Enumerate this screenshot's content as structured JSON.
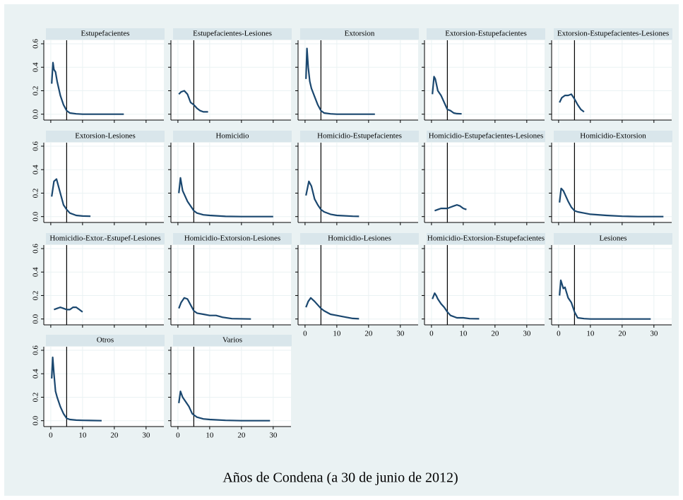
{
  "chart_data": {
    "type": "line",
    "xlabel": "Años de Condena (a 30 de junio de 2012)",
    "xlim": [
      -2.2,
      35.6
    ],
    "ylim": [
      -0.05,
      0.63
    ],
    "xticks": [
      0,
      10,
      20,
      30
    ],
    "yticks": [
      {
        "value": 0,
        "label": "0.0"
      },
      0.2,
      0.4,
      0.6
    ],
    "reference_line": 5,
    "color": "#1a476f",
    "grid": true,
    "panels": [
      {
        "title": "Estupefacientes",
        "x": [
          0.3,
          0.7,
          1,
          1.5,
          2,
          3,
          4,
          5,
          6,
          8,
          10,
          15,
          23
        ],
        "values": [
          0.26,
          0.44,
          0.38,
          0.36,
          0.28,
          0.16,
          0.08,
          0.03,
          0.01,
          0.003,
          0,
          0,
          0
        ]
      },
      {
        "title": "Estupefacientes-Lesiones",
        "x": [
          0.3,
          1,
          2,
          3,
          4,
          5,
          6,
          7,
          8,
          9.5
        ],
        "values": [
          0.17,
          0.19,
          0.2,
          0.17,
          0.1,
          0.08,
          0.05,
          0.03,
          0.02,
          0.02
        ]
      },
      {
        "title": "Extorsion",
        "x": [
          0.3,
          0.6,
          1,
          1.5,
          2,
          3,
          4,
          5,
          6,
          8,
          10,
          15,
          22
        ],
        "values": [
          0.3,
          0.56,
          0.4,
          0.28,
          0.22,
          0.15,
          0.08,
          0.03,
          0.01,
          0.003,
          0,
          0,
          0
        ]
      },
      {
        "title": "Extorsion-Estupefacientes",
        "x": [
          0.3,
          0.8,
          1.2,
          2,
          3,
          4,
          5,
          6,
          7,
          8,
          9.5
        ],
        "values": [
          0.17,
          0.32,
          0.3,
          0.2,
          0.16,
          0.1,
          0.04,
          0.03,
          0.01,
          0.005,
          0.003
        ]
      },
      {
        "title": "Extorsion-Estupefacientes-Lesiones",
        "x": [
          0.3,
          1,
          2,
          3,
          4,
          5,
          6,
          7,
          8
        ],
        "values": [
          0.1,
          0.14,
          0.16,
          0.16,
          0.17,
          0.13,
          0.08,
          0.04,
          0.02
        ]
      },
      {
        "title": "Extorsion-Lesiones",
        "x": [
          0.3,
          1,
          1.8,
          3,
          4,
          5,
          6,
          8,
          10,
          12.5
        ],
        "values": [
          0.17,
          0.3,
          0.32,
          0.2,
          0.1,
          0.06,
          0.03,
          0.01,
          0.005,
          0.003
        ]
      },
      {
        "title": "Homicidio",
        "x": [
          0.3,
          0.8,
          1.5,
          3,
          4,
          5,
          6,
          8,
          10,
          15,
          20,
          30
        ],
        "values": [
          0.2,
          0.33,
          0.22,
          0.13,
          0.09,
          0.05,
          0.03,
          0.015,
          0.01,
          0.002,
          0,
          0
        ]
      },
      {
        "title": "Homicidio-Estupefacientes",
        "x": [
          0.3,
          1.2,
          2,
          3,
          4,
          5,
          6,
          8,
          10,
          15,
          17
        ],
        "values": [
          0.18,
          0.3,
          0.26,
          0.15,
          0.1,
          0.06,
          0.04,
          0.02,
          0.01,
          0.003,
          0.002
        ]
      },
      {
        "title": "Homicidio-Estupefacientes-Lesiones",
        "x": [
          1,
          2,
          3,
          4,
          5,
          6,
          7,
          8,
          9,
          10,
          11
        ],
        "values": [
          0.05,
          0.06,
          0.07,
          0.07,
          0.07,
          0.08,
          0.09,
          0.1,
          0.09,
          0.07,
          0.06
        ]
      },
      {
        "title": "Homicidio-Extorsion",
        "x": [
          0.3,
          0.8,
          1.5,
          3,
          4,
          5,
          6,
          8,
          10,
          15,
          20,
          25,
          30,
          33
        ],
        "values": [
          0.12,
          0.24,
          0.22,
          0.13,
          0.08,
          0.05,
          0.04,
          0.03,
          0.02,
          0.01,
          0.003,
          0,
          0,
          0
        ]
      },
      {
        "title": "Homicidio-Extor.-Estupef-Lesiones",
        "x": [
          1,
          2,
          3,
          4,
          5,
          6,
          7,
          8,
          9,
          10
        ],
        "values": [
          0.08,
          0.09,
          0.1,
          0.09,
          0.08,
          0.08,
          0.1,
          0.1,
          0.08,
          0.06
        ]
      },
      {
        "title": "Homicidio-Extorsion-Lesiones",
        "x": [
          0.3,
          1,
          2,
          3,
          4,
          5,
          6,
          8,
          10,
          12,
          14,
          17,
          23
        ],
        "values": [
          0.09,
          0.14,
          0.18,
          0.17,
          0.12,
          0.07,
          0.05,
          0.04,
          0.03,
          0.03,
          0.015,
          0.003,
          0
        ]
      },
      {
        "title": "Homicidio-Lesiones",
        "x": [
          0.3,
          1,
          1.8,
          3,
          4,
          5,
          6,
          8,
          10,
          12,
          15,
          17
        ],
        "values": [
          0.1,
          0.15,
          0.18,
          0.15,
          0.12,
          0.09,
          0.07,
          0.04,
          0.03,
          0.02,
          0.005,
          0.002
        ]
      },
      {
        "title": "Homicidio-Extorsion-Estupefacientes",
        "x": [
          0.3,
          1,
          1.5,
          2,
          3,
          4,
          5,
          6,
          8,
          10,
          12,
          15
        ],
        "values": [
          0.17,
          0.22,
          0.2,
          0.17,
          0.13,
          0.1,
          0.06,
          0.03,
          0.01,
          0.01,
          0.003,
          0.002
        ]
      },
      {
        "title": "Lesiones",
        "x": [
          0.3,
          0.7,
          1.5,
          2,
          3,
          4,
          5,
          6,
          8,
          10,
          15,
          20,
          29
        ],
        "values": [
          0.2,
          0.33,
          0.26,
          0.27,
          0.18,
          0.14,
          0.06,
          0.01,
          0.003,
          0,
          0,
          0,
          0
        ]
      },
      {
        "title": "Otros",
        "x": [
          0.3,
          0.6,
          1,
          1.5,
          2,
          3,
          4,
          5,
          6,
          8,
          10,
          16
        ],
        "values": [
          0.36,
          0.54,
          0.4,
          0.25,
          0.2,
          0.12,
          0.06,
          0.02,
          0.01,
          0.005,
          0.003,
          0
        ]
      },
      {
        "title": "Varios",
        "x": [
          0.3,
          0.8,
          1.5,
          2.5,
          3.5,
          4.5,
          6,
          8,
          10,
          15,
          20,
          29
        ],
        "values": [
          0.15,
          0.25,
          0.2,
          0.16,
          0.12,
          0.06,
          0.03,
          0.015,
          0.01,
          0.003,
          0,
          0
        ]
      }
    ]
  }
}
